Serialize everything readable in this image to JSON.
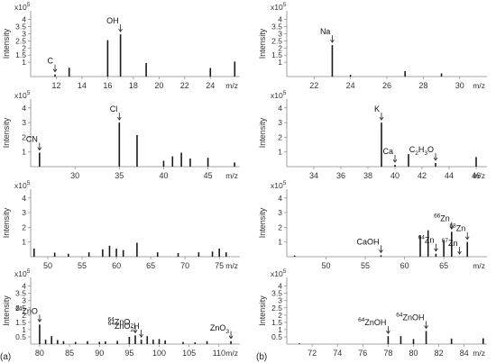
{
  "panel_labels": {
    "a": "(a)",
    "b": "(b)"
  },
  "chart_data": [
    {
      "type": "bar",
      "xlabel": "m/z",
      "ylabel": "Intensity",
      "y_multiplier": "x10",
      "xlim": [
        10,
        26.3
      ],
      "ylim": [
        0,
        4.6
      ],
      "xticks": [
        12,
        14,
        16,
        18,
        20,
        22,
        24
      ],
      "yticks": [
        1.0,
        1.5,
        2.0,
        2.5,
        3.0,
        3.5,
        4.0
      ],
      "x": [
        11.9,
        13,
        16,
        17,
        19,
        24,
        25.9
      ],
      "values": [
        0.15,
        0.62,
        2.55,
        2.95,
        0.95,
        0.6,
        1.05
      ],
      "annotations": [
        {
          "label": "C",
          "x": 11.9
        },
        {
          "label": "OH",
          "x": 17
        }
      ]
    },
    {
      "type": "bar",
      "xlabel": "m/z",
      "ylabel": "Intensity",
      "y_multiplier": "x10",
      "xlim": [
        20.5,
        31.5
      ],
      "ylim": [
        0,
        4.6
      ],
      "xticks": [
        22,
        24,
        26,
        28,
        30
      ],
      "yticks": [
        1.0,
        1.5,
        2.0,
        2.5,
        3.0,
        3.5,
        4.0
      ],
      "x": [
        23,
        24,
        27,
        29
      ],
      "values": [
        2.2,
        0.12,
        0.38,
        0.22
      ],
      "annotations": [
        {
          "label": "Na",
          "x": 23
        }
      ]
    },
    {
      "type": "bar",
      "xlabel": "m/z",
      "ylabel": "Intensity",
      "y_multiplier": "x10",
      "xlim": [
        25,
        48.6
      ],
      "ylim": [
        0,
        4.6
      ],
      "xticks": [
        30,
        35,
        40,
        45
      ],
      "yticks": [
        1.0,
        2.0,
        3.0,
        4.0
      ],
      "x": [
        26,
        35,
        37,
        40,
        41,
        42,
        43,
        45,
        48
      ],
      "values": [
        0.95,
        3.0,
        2.15,
        0.4,
        0.7,
        0.95,
        0.55,
        0.6,
        0.28
      ],
      "annotations": [
        {
          "label": "CN",
          "x": 26
        },
        {
          "label": "Cl",
          "x": 35
        }
      ]
    },
    {
      "type": "bar",
      "xlabel": "m/z",
      "ylabel": "Intensity",
      "y_multiplier": "x10",
      "xlim": [
        32,
        46.8
      ],
      "ylim": [
        0,
        4.6
      ],
      "xticks": [
        34,
        36,
        38,
        40,
        42,
        44,
        46
      ],
      "yticks": [
        1.0,
        2.0,
        3.0,
        4.0
      ],
      "x": [
        39,
        40,
        41,
        43,
        46
      ],
      "values": [
        3.0,
        0.12,
        0.85,
        0.25,
        0.65
      ],
      "annotations": [
        {
          "label": "K",
          "x": 39
        },
        {
          "label": "Ca",
          "x": 40
        },
        {
          "label": "C",
          "sub": "2",
          "label2": "H",
          "sub2": "3",
          "label3": "O",
          "x": 43
        }
      ]
    },
    {
      "type": "bar",
      "xlabel": "m/z",
      "ylabel": "Intensity",
      "y_multiplier": "x10",
      "xlim": [
        47.5,
        78
      ],
      "ylim": [
        0,
        4.6
      ],
      "xticks": [
        50,
        55,
        60,
        65,
        70,
        75
      ],
      "yticks": [
        1.0,
        2.0,
        3.0,
        4.0
      ],
      "x": [
        48,
        51,
        53,
        56,
        58,
        59,
        60,
        61,
        63,
        66,
        69,
        72,
        74,
        75,
        76
      ],
      "values": [
        0.55,
        0.28,
        0.2,
        0.3,
        0.5,
        0.75,
        0.55,
        0.45,
        0.95,
        0.3,
        0.25,
        0.3,
        0.35,
        0.55,
        0.3
      ],
      "annotations": []
    },
    {
      "type": "bar",
      "xlabel": "m/z",
      "ylabel": "Intensity",
      "y_multiplier": "x10",
      "xlim": [
        45,
        70.5
      ],
      "ylim": [
        0,
        4.6
      ],
      "xticks": [
        50,
        55,
        60,
        65
      ],
      "yticks": [
        1.0,
        2.0,
        3.0,
        4.0
      ],
      "x": [
        46,
        57,
        62,
        63,
        64,
        65,
        66,
        68
      ],
      "values": [
        0.08,
        0.1,
        1.45,
        1.8,
        0.2,
        1.1,
        1.7,
        1.0
      ],
      "annotations": [
        {
          "label": "CaOH",
          "x": 57
        },
        {
          "sup": "64",
          "label": "Zn",
          "x": 64
        },
        {
          "sup": "66",
          "label": "Zn",
          "x": 66
        },
        {
          "sup": "67",
          "label": "Zn",
          "x": 67
        },
        {
          "sup": "68",
          "label": "Zn",
          "x": 68
        }
      ]
    },
    {
      "type": "bar",
      "xlabel": "m/z",
      "ylabel": "Intensity",
      "y_multiplier": "x10",
      "xlim": [
        78.5,
        113.5
      ],
      "ylim": [
        0,
        4.6
      ],
      "xticks": [
        80,
        85,
        90,
        95,
        100,
        105,
        110
      ],
      "yticks": [
        0.5,
        1.0,
        1.5,
        2.0,
        2.5,
        3.0,
        3.5,
        4.0
      ],
      "x": [
        80,
        81,
        82,
        83,
        84,
        86,
        88,
        90,
        91,
        93,
        95,
        96,
        97,
        98,
        99,
        100,
        101,
        104,
        106,
        108,
        112
      ],
      "values": [
        1.35,
        0.3,
        0.55,
        0.28,
        0.2,
        0.15,
        0.2,
        0.15,
        0.18,
        0.22,
        0.5,
        0.6,
        0.3,
        0.55,
        0.3,
        0.35,
        0.25,
        0.15,
        0.12,
        0.2,
        0.2
      ],
      "annotations": [
        {
          "sup": "64",
          "label": "ZnO",
          "x": 80
        },
        {
          "sup": "64",
          "label": "ZnO",
          "sub": "2",
          "x": 96
        },
        {
          "sup": "64",
          "label": "ZnO",
          "sub": "2",
          "label2": "H",
          "x": 97
        },
        {
          "label": "ZnO",
          "sub": "3",
          "x": 112
        }
      ]
    },
    {
      "type": "bar",
      "xlabel": "m/z",
      "ylabel": "Intensity",
      "y_multiplier": "x10",
      "xlim": [
        70,
        85.8
      ],
      "ylim": [
        0,
        4.6
      ],
      "xticks": [
        72,
        74,
        76,
        78,
        80,
        82,
        84
      ],
      "yticks": [
        0.5,
        1.0,
        1.5,
        2.0,
        2.5,
        3.0,
        3.5,
        4.0
      ],
      "x": [
        71,
        78,
        79,
        80,
        81,
        83,
        85.5
      ],
      "values": [
        0.05,
        0.55,
        0.55,
        0.35,
        0.9,
        0.38,
        0.4
      ],
      "annotations": [
        {
          "sup": "64",
          "label": "ZnOH",
          "x": 78
        },
        {
          "sup": "64",
          "label": "ZnOH",
          "x": 81
        }
      ]
    }
  ]
}
